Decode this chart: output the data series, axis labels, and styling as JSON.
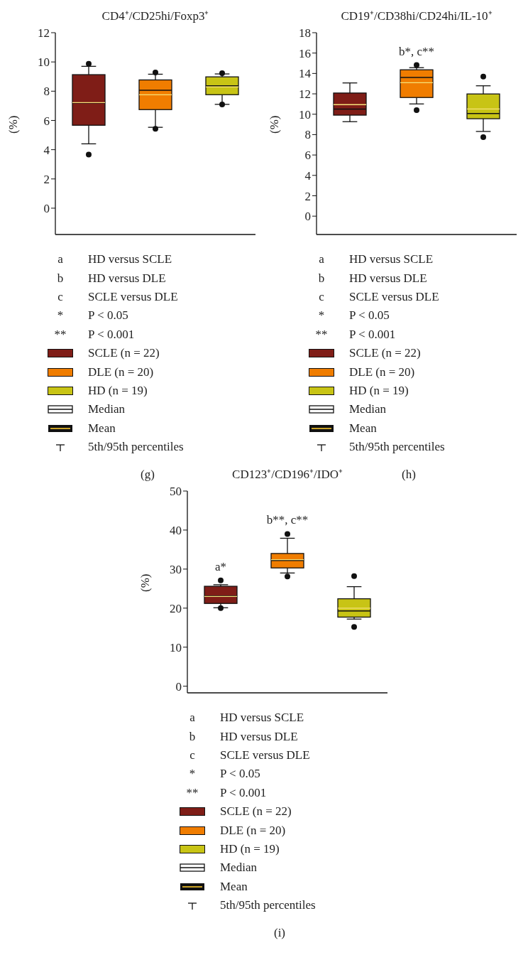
{
  "chart_data": [
    {
      "type": "box",
      "title": "CD4⁺/CD25hi/Foxp3⁺",
      "ylabel": "(%)",
      "categories": [
        null,
        null,
        null
      ],
      "ylim": [
        -1.8,
        12
      ],
      "yticks": [
        0,
        2,
        4,
        6,
        8,
        10,
        12
      ],
      "tick_labels": "y",
      "legend": "bottom",
      "series": [
        {
          "name": "SCLE (n = 22)",
          "color": "#7f1d17",
          "boxes": [
            {
              "low": 4.4,
              "q1": 5.67,
              "median": 7.2,
              "q3": 9.13,
              "high": 9.7,
              "mean": 7.22,
              "outliers": [
                9.87,
                3.67
              ]
            },
            null,
            null
          ]
        },
        {
          "name": "DLE (n = 20)",
          "color": "#f07d00",
          "boxes": [
            null,
            {
              "low": 5.53,
              "q1": 6.74,
              "median": 8.06,
              "q3": 8.77,
              "high": 9.16,
              "mean": 7.75,
              "outliers": [
                9.28,
                5.43
              ]
            },
            null
          ]
        },
        {
          "name": "HD (n = 19)",
          "color": "#c8c415",
          "boxes": [
            null,
            null,
            {
              "low": 7.1,
              "q1": 7.76,
              "median": 8.37,
              "q3": 8.98,
              "high": 9.18,
              "mean": 8.29,
              "outliers": [
                9.23,
                7.09
              ]
            }
          ]
        }
      ],
      "annotations": [
        "a",
        "HD versus SCLE",
        "b",
        "HD versus DLE",
        "c",
        "SCLE versus DLE",
        "*",
        "P < 0.05",
        "**",
        "P < 0.001",
        "Median",
        "Mean",
        "5th/95th percentiles",
        "(g)"
      ]
    },
    {
      "type": "box",
      "title": "CD19⁺/CD38hi/CD24hi/IL-10⁺",
      "ylabel": "(%)",
      "categories": [
        null,
        null,
        null
      ],
      "ylim": [
        -1.8,
        18
      ],
      "yticks": [
        0,
        2,
        4,
        6,
        8,
        10,
        12,
        14,
        16,
        18
      ],
      "tick_labels": "y",
      "legend": "bottom",
      "series": [
        {
          "name": "SCLE (n = 22)",
          "color": "#7f1d17",
          "boxes": [
            {
              "low": 9.27,
              "q1": 9.91,
              "median": 10.51,
              "q3": 12.08,
              "high": 13.07,
              "mean": 10.94
            },
            null,
            null
          ]
        },
        {
          "name": "DLE (n = 20)",
          "color": "#f07d00",
          "boxes": [
            null,
            {
              "low": 11.01,
              "q1": 11.64,
              "median": 13.61,
              "q3": 14.36,
              "high": 14.57,
              "mean": 13.09,
              "outliers": [
                14.82,
                10.4
              ]
            },
            null
          ]
        },
        {
          "name": "HD (n = 19)",
          "color": "#c8c415",
          "boxes": [
            null,
            null,
            {
              "low": 8.31,
              "q1": 9.56,
              "median": 10.07,
              "q3": 11.99,
              "high": 12.79,
              "mean": 10.52,
              "outliers": [
                13.7,
                7.75
              ]
            }
          ]
        }
      ],
      "annotations": [
        "b*, c**",
        "a",
        "HD versus SCLE",
        "b",
        "HD versus DLE",
        "c",
        "SCLE versus DLE",
        "*",
        "P < 0.05",
        "**",
        "P < 0.001",
        "Median",
        "Mean",
        "5th/95th percentiles",
        "(h)"
      ]
    },
    {
      "type": "box",
      "title": "CD123⁺/CD196⁺/IDO⁺",
      "ylabel": "(%)",
      "categories": [
        null,
        null,
        null
      ],
      "ylim": [
        -1.7,
        50
      ],
      "yticks": [
        0,
        10,
        20,
        30,
        40,
        50
      ],
      "tick_labels": "y",
      "legend": "bottom",
      "series": [
        {
          "name": "SCLE (n = 22)",
          "color": "#7f1d17",
          "boxes": [
            {
              "low": 20.1,
              "q1": 21.2,
              "median": 23.1,
              "q3": 25.6,
              "high": 26,
              "mean": 23,
              "outliers": [
                27.1,
                20
              ]
            },
            null,
            null
          ]
        },
        {
          "name": "DLE (n = 20)",
          "color": "#f07d00",
          "boxes": [
            null,
            {
              "low": 29,
              "q1": 30.3,
              "median": 32.2,
              "q3": 34,
              "high": 37.9,
              "mean": 32.4,
              "outliers": [
                39,
                28.1
              ]
            },
            null
          ]
        },
        {
          "name": "HD (n = 19)",
          "color": "#c8c415",
          "boxes": [
            null,
            null,
            {
              "low": 17.2,
              "q1": 17.7,
              "median": 19.3,
              "q3": 22.4,
              "high": 25.5,
              "mean": 20,
              "outliers": [
                28.2,
                15.2
              ]
            }
          ]
        }
      ],
      "annotations": [
        "a*",
        "b**, c**",
        "a",
        "HD versus SCLE",
        "b",
        "HD versus DLE",
        "c",
        "SCLE versus DLE",
        "*",
        "P < 0.05",
        "**",
        "P < 0.001",
        "Median",
        "Mean",
        "5th/95th percentiles",
        "(i)"
      ]
    }
  ]
}
